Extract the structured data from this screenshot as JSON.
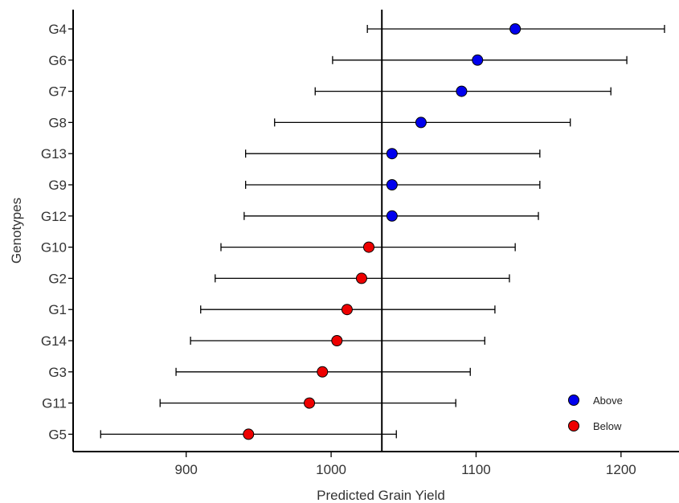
{
  "chart_data": {
    "type": "scatter",
    "xlabel": "Predicted Grain Yield",
    "ylabel": "Genotypes",
    "xlim": [
      822,
      1240
    ],
    "x_ticks": [
      900,
      1000,
      1100,
      1200
    ],
    "reference_line": 1035,
    "categories": [
      "G4",
      "G6",
      "G7",
      "G8",
      "G13",
      "G9",
      "G12",
      "G10",
      "G2",
      "G1",
      "G14",
      "G3",
      "G11",
      "G5"
    ],
    "points": [
      {
        "genotype": "G4",
        "value": 1127,
        "lower": 1025,
        "upper": 1230,
        "group": "Above"
      },
      {
        "genotype": "G6",
        "value": 1101,
        "lower": 1001,
        "upper": 1204,
        "group": "Above"
      },
      {
        "genotype": "G7",
        "value": 1090,
        "lower": 989,
        "upper": 1193,
        "group": "Above"
      },
      {
        "genotype": "G8",
        "value": 1062,
        "lower": 961,
        "upper": 1165,
        "group": "Above"
      },
      {
        "genotype": "G13",
        "value": 1042,
        "lower": 941,
        "upper": 1144,
        "group": "Above"
      },
      {
        "genotype": "G9",
        "value": 1042,
        "lower": 941,
        "upper": 1144,
        "group": "Above"
      },
      {
        "genotype": "G12",
        "value": 1042,
        "lower": 940,
        "upper": 1143,
        "group": "Above"
      },
      {
        "genotype": "G10",
        "value": 1026,
        "lower": 924,
        "upper": 1127,
        "group": "Below"
      },
      {
        "genotype": "G2",
        "value": 1021,
        "lower": 920,
        "upper": 1123,
        "group": "Below"
      },
      {
        "genotype": "G1",
        "value": 1011,
        "lower": 910,
        "upper": 1113,
        "group": "Below"
      },
      {
        "genotype": "G14",
        "value": 1004,
        "lower": 903,
        "upper": 1106,
        "group": "Below"
      },
      {
        "genotype": "G3",
        "value": 994,
        "lower": 893,
        "upper": 1096,
        "group": "Below"
      },
      {
        "genotype": "G11",
        "value": 985,
        "lower": 882,
        "upper": 1086,
        "group": "Below"
      },
      {
        "genotype": "G5",
        "value": 943,
        "lower": 841,
        "upper": 1045,
        "group": "Below"
      }
    ],
    "legend": [
      {
        "label": "Above",
        "color": "#0000ee"
      },
      {
        "label": "Below",
        "color": "#ee0000"
      }
    ],
    "legend_position": "bottom-right",
    "grid": false
  }
}
